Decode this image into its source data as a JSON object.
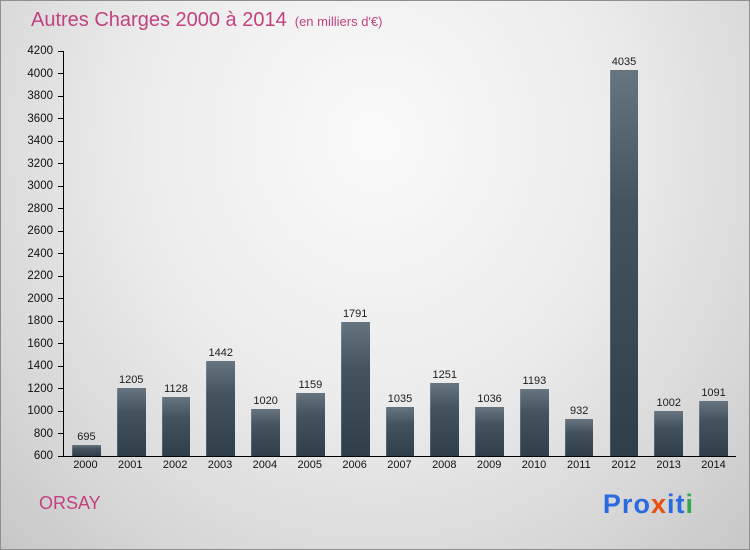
{
  "title": {
    "main": "Autres Charges 2000 à 2014",
    "subtitle": "(en milliers d'€)"
  },
  "footer": {
    "company": "ORSAY",
    "logo_letters": [
      {
        "ch": "P",
        "color": "#2a6ae1"
      },
      {
        "ch": "r",
        "color": "#2a6ae1"
      },
      {
        "ch": "o",
        "color": "#2a6ae1"
      },
      {
        "ch": "x",
        "color": "#e8500f"
      },
      {
        "ch": "i",
        "color": "#2a6ae1"
      },
      {
        "ch": "t",
        "color": "#2a6ae1"
      },
      {
        "ch": "i",
        "color": "#34a853"
      }
    ]
  },
  "chart_data": {
    "type": "bar",
    "title": "Autres Charges 2000 à 2014",
    "subtitle": "(en milliers d'€)",
    "xlabel": "",
    "ylabel": "",
    "categories": [
      "2000",
      "2001",
      "2002",
      "2003",
      "2004",
      "2005",
      "2006",
      "2007",
      "2008",
      "2009",
      "2010",
      "2011",
      "2012",
      "2013",
      "2014"
    ],
    "values": [
      695,
      1205,
      1128,
      1442,
      1020,
      1159,
      1791,
      1035,
      1251,
      1036,
      1193,
      932,
      4035,
      1002,
      1091
    ],
    "ylim": [
      600,
      4200
    ],
    "ytick_step": 200,
    "grid": false,
    "legend": "none",
    "title_color": "#c2417f",
    "bar_color_top": "#66757f",
    "bar_color_bottom": "#303e4a"
  }
}
